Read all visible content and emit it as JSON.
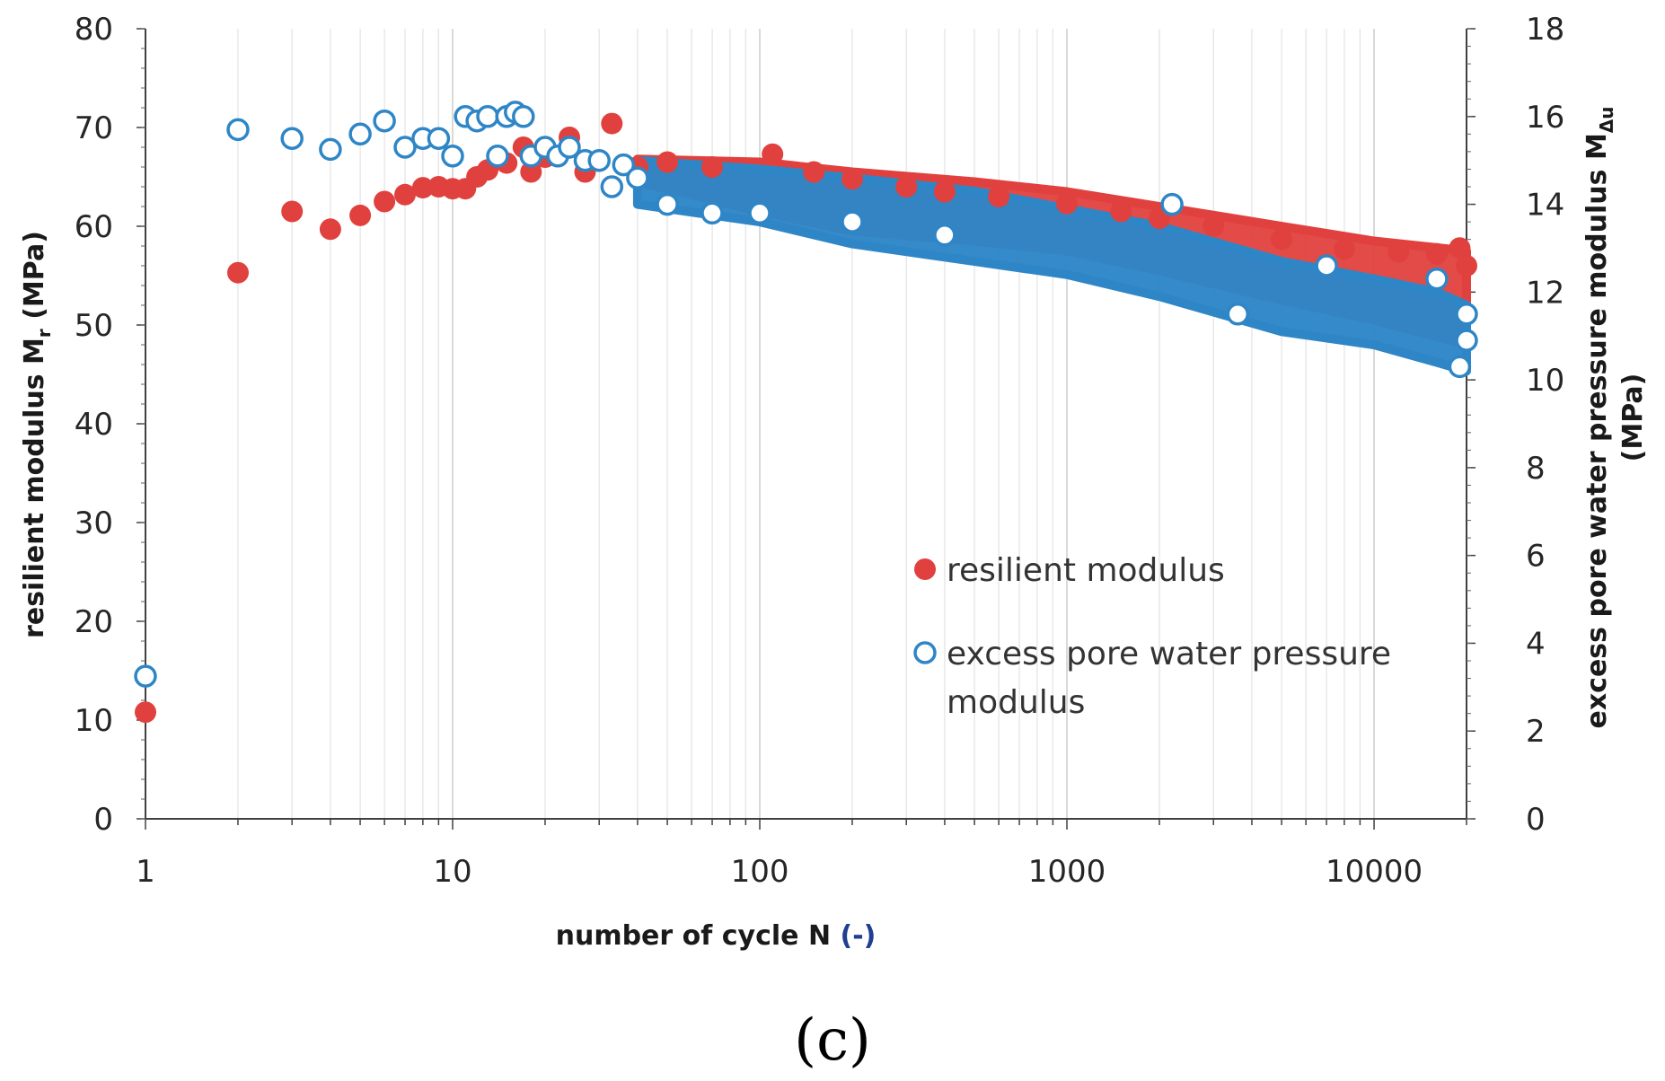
{
  "chart_data": {
    "type": "scatter",
    "title": "",
    "caption": "(c)",
    "xlabel": {
      "main": "number of cycle N ",
      "unit": "(-)"
    },
    "ylabel_left": {
      "main": "resilient modulus M",
      "sub": "r",
      "unit": " (MPa)"
    },
    "ylabel_right": {
      "line1_main": "excess pore water pressure modulus M",
      "line1_sub": "Δu",
      "line2": "(MPa)"
    },
    "xscale": "log",
    "xlim": [
      1,
      20000
    ],
    "ylim_left": [
      0,
      80
    ],
    "ylim_right": [
      0,
      18
    ],
    "x_ticks": [
      {
        "value": 1,
        "label": "1"
      },
      {
        "value": 10,
        "label": "10"
      },
      {
        "value": 100,
        "label": "100"
      },
      {
        "value": 1000,
        "label": "1000"
      },
      {
        "value": 10000,
        "label": "10000"
      }
    ],
    "y_left_ticks": [
      {
        "value": 0,
        "label": "0"
      },
      {
        "value": 10,
        "label": "10"
      },
      {
        "value": 20,
        "label": "20"
      },
      {
        "value": 30,
        "label": "30"
      },
      {
        "value": 40,
        "label": "40"
      },
      {
        "value": 50,
        "label": "50"
      },
      {
        "value": 60,
        "label": "60"
      },
      {
        "value": 70,
        "label": "70"
      },
      {
        "value": 80,
        "label": "80"
      }
    ],
    "y_right_ticks": [
      {
        "value": 0,
        "label": "0"
      },
      {
        "value": 2,
        "label": "2"
      },
      {
        "value": 4,
        "label": "4"
      },
      {
        "value": 6,
        "label": "6"
      },
      {
        "value": 8,
        "label": "8"
      },
      {
        "value": 10,
        "label": "10"
      },
      {
        "value": 12,
        "label": "12"
      },
      {
        "value": 14,
        "label": "14"
      },
      {
        "value": 16,
        "label": "16"
      },
      {
        "value": 18,
        "label": "18"
      }
    ],
    "grid": "vertical",
    "legend": {
      "position": "center-right",
      "entries": [
        {
          "label": "resilient modulus",
          "marker": "filled-circle",
          "color": "#e0413e"
        },
        {
          "label_line1": "excess pore water pressure",
          "label_line2": "modulus",
          "marker": "open-circle",
          "color": "#2e86c7"
        }
      ]
    },
    "series": [
      {
        "name": "resilient modulus",
        "axis": "left",
        "marker": "filled-circle",
        "color": "#e0413e",
        "points": [
          [
            1,
            10.8
          ],
          [
            2,
            55.3
          ],
          [
            3,
            61.5
          ],
          [
            4,
            59.7
          ],
          [
            5,
            61.1
          ],
          [
            6,
            62.5
          ],
          [
            7,
            63.2
          ],
          [
            8,
            63.9
          ],
          [
            9,
            64.0
          ],
          [
            10,
            63.8
          ],
          [
            11,
            63.8
          ],
          [
            12,
            65.0
          ],
          [
            13,
            65.7
          ],
          [
            15,
            66.4
          ],
          [
            17,
            68.0
          ],
          [
            18,
            65.5
          ],
          [
            20,
            67.0
          ],
          [
            24,
            69.0
          ],
          [
            27,
            65.5
          ],
          [
            33,
            70.4
          ],
          [
            40,
            66.0
          ],
          [
            50,
            66.5
          ],
          [
            70,
            66.0
          ],
          [
            110,
            67.3
          ],
          [
            150,
            65.5
          ],
          [
            200,
            64.8
          ],
          [
            300,
            64.0
          ],
          [
            400,
            63.5
          ],
          [
            600,
            63.0
          ],
          [
            1000,
            62.3
          ],
          [
            1500,
            61.5
          ],
          [
            2000,
            60.8
          ],
          [
            3000,
            60.0
          ],
          [
            5000,
            58.7
          ],
          [
            8000,
            57.7
          ],
          [
            12000,
            57.4
          ],
          [
            16000,
            57.2
          ],
          [
            19000,
            57.8
          ],
          [
            20000,
            56.0
          ]
        ],
        "band": [
          [
            40,
            64.5,
            66.8
          ],
          [
            100,
            61.5,
            66.5
          ],
          [
            200,
            59.5,
            65.5
          ],
          [
            500,
            58.5,
            64.5
          ],
          [
            1000,
            57.5,
            63.5
          ],
          [
            2000,
            55.5,
            62.0
          ],
          [
            5000,
            52.5,
            60.0
          ],
          [
            10000,
            50.5,
            58.5
          ],
          [
            20000,
            48.0,
            57.5
          ]
        ]
      },
      {
        "name": "excess pore water pressure modulus",
        "axis": "right",
        "marker": "open-circle",
        "color": "#2e86c7",
        "points": [
          [
            1,
            3.25
          ],
          [
            2,
            15.7
          ],
          [
            3,
            15.5
          ],
          [
            4,
            15.25
          ],
          [
            5,
            15.6
          ],
          [
            6,
            15.9
          ],
          [
            7,
            15.3
          ],
          [
            8,
            15.5
          ],
          [
            9,
            15.5
          ],
          [
            10,
            15.1
          ],
          [
            11,
            16.0
          ],
          [
            12,
            15.9
          ],
          [
            13,
            16.0
          ],
          [
            14,
            15.1
          ],
          [
            15,
            16.0
          ],
          [
            16,
            16.1
          ],
          [
            17,
            16.0
          ],
          [
            18,
            15.1
          ],
          [
            20,
            15.3
          ],
          [
            22,
            15.1
          ],
          [
            24,
            15.3
          ],
          [
            27,
            15.0
          ],
          [
            30,
            15.0
          ],
          [
            33,
            14.4
          ],
          [
            36,
            14.9
          ],
          [
            40,
            14.6
          ],
          [
            50,
            14.0
          ],
          [
            70,
            13.8
          ],
          [
            100,
            13.8
          ],
          [
            200,
            13.6
          ],
          [
            400,
            13.3
          ],
          [
            2200,
            14.0
          ],
          [
            3600,
            11.5
          ],
          [
            7000,
            12.6
          ],
          [
            16000,
            12.3
          ],
          [
            19000,
            10.3
          ],
          [
            20000,
            10.9
          ],
          [
            20000,
            11.5
          ]
        ],
        "band": [
          [
            40,
            14.0,
            15.0
          ],
          [
            100,
            13.6,
            14.8
          ],
          [
            200,
            13.1,
            14.6
          ],
          [
            500,
            12.7,
            14.3
          ],
          [
            1000,
            12.4,
            13.9
          ],
          [
            2000,
            11.9,
            13.5
          ],
          [
            5000,
            11.1,
            12.7
          ],
          [
            10000,
            10.8,
            12.3
          ],
          [
            16000,
            10.4,
            12.0
          ],
          [
            20000,
            10.2,
            11.7
          ]
        ]
      }
    ]
  }
}
